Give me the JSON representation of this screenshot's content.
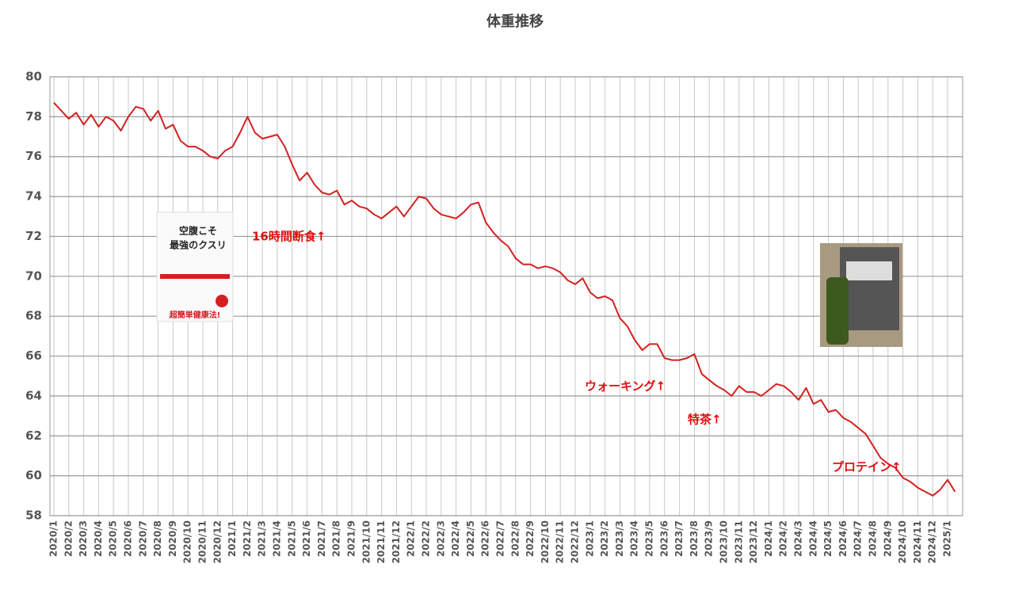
{
  "chart_data": {
    "type": "line",
    "title": "体重推移",
    "categories": [
      "2020/1",
      null,
      "2020/2",
      null,
      "2020/3",
      null,
      "2020/4",
      null,
      "2020/5",
      null,
      "2020/6",
      null,
      "2020/7",
      null,
      "2020/8",
      null,
      "2020/9",
      null,
      "2020/10",
      null,
      "2020/11",
      null,
      "2020/12",
      null,
      "2021/1",
      null,
      "2021/2",
      null,
      "2021/3",
      null,
      "2021/4",
      null,
      "2021/5",
      null,
      "2021/6",
      null,
      "2021/7",
      null,
      "2021/8",
      null,
      "2021/9",
      null,
      "2021/10",
      null,
      "2021/11",
      null,
      "2021/12",
      null,
      "2022/1",
      null,
      "2022/2",
      null,
      "2022/3",
      null,
      "2022/4",
      null,
      "2022/5",
      null,
      "2022/6",
      null,
      "2022/7",
      null,
      "2022/8",
      null,
      "2022/9",
      null,
      "2022/10",
      null,
      "2022/11",
      null,
      "2022/12",
      null,
      "2023/1",
      null,
      "2023/2",
      null,
      "2023/3",
      null,
      "2023/4",
      null,
      "2023/5",
      null,
      "2023/6",
      null,
      "2023/7",
      null,
      "2023/8",
      null,
      "2023/9",
      null,
      "2023/10",
      null,
      "2023/11",
      null,
      "2023/12",
      null,
      "2024/1",
      null,
      "2024/2",
      null,
      "2024/3",
      null,
      "2024/4",
      null,
      "2024/5",
      null,
      "2024/6",
      null,
      "2024/7",
      null,
      "2024/8",
      null,
      "2024/9",
      null,
      "2024/10",
      null,
      "2024/11",
      null,
      "2024/12",
      null,
      "2025/1",
      null
    ],
    "values": [
      78.7,
      78.3,
      77.9,
      78.2,
      77.6,
      78.1,
      77.5,
      78.0,
      77.8,
      77.3,
      78.0,
      78.5,
      78.4,
      77.8,
      78.3,
      77.4,
      77.6,
      76.8,
      76.5,
      76.5,
      76.3,
      76.0,
      75.9,
      76.3,
      76.5,
      77.2,
      78.0,
      77.2,
      76.9,
      77.0,
      77.1,
      76.5,
      75.6,
      74.8,
      75.2,
      74.6,
      74.2,
      74.1,
      74.3,
      73.6,
      73.8,
      73.5,
      73.4,
      73.1,
      72.9,
      73.2,
      73.5,
      73.0,
      73.5,
      74.0,
      73.9,
      73.4,
      73.1,
      73.0,
      72.9,
      73.2,
      73.6,
      73.7,
      72.7,
      72.2,
      71.8,
      71.5,
      70.9,
      70.6,
      70.6,
      70.4,
      70.5,
      70.4,
      70.2,
      69.8,
      69.6,
      69.9,
      69.2,
      68.9,
      69.0,
      68.8,
      67.9,
      67.5,
      66.8,
      66.3,
      66.6,
      66.6,
      65.9,
      65.8,
      65.8,
      65.9,
      66.1,
      65.1,
      64.8,
      64.5,
      64.3,
      64.0,
      64.5,
      64.2,
      64.2,
      64.0,
      64.3,
      64.6,
      64.5,
      64.2,
      63.8,
      64.4,
      63.6,
      63.8,
      63.2,
      63.3,
      62.9,
      62.7,
      62.4,
      62.1,
      61.5,
      60.9,
      60.6,
      60.4,
      59.9,
      59.7,
      59.4,
      59.2,
      59.0,
      59.3,
      59.8,
      59.2
    ],
    "color": "#d42020",
    "ylim": [
      58,
      80
    ],
    "yticks": [
      58,
      60,
      62,
      64,
      66,
      68,
      70,
      72,
      74,
      76,
      78,
      80
    ],
    "grid": true,
    "annotations": [
      "16時間断食↑",
      "ウォーキング↑",
      "特茶↑",
      "プロテイン↑"
    ],
    "book": {
      "title_line1": "空腹こそ",
      "title_line2": "最強のクスリ",
      "tagline": "超簡単健康法!"
    }
  }
}
